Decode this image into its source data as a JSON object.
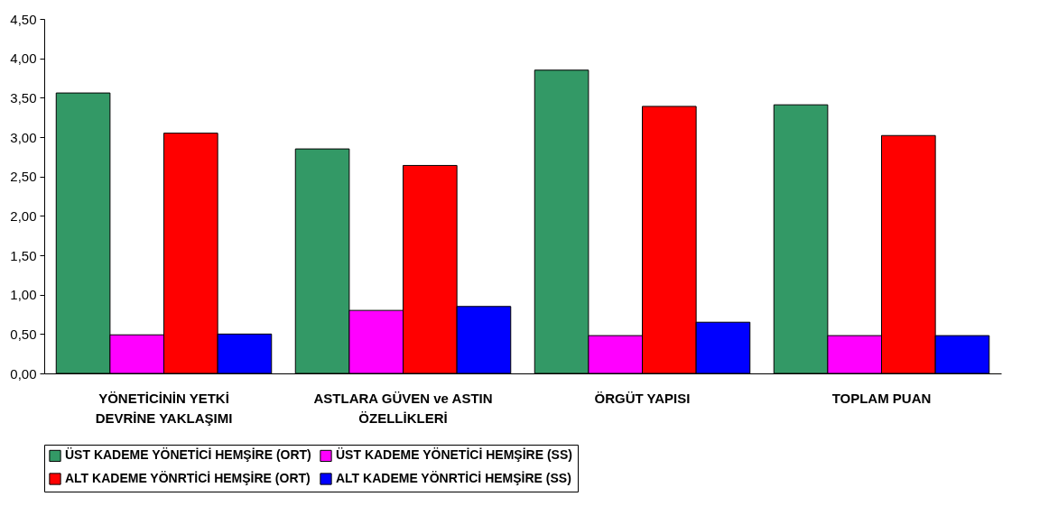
{
  "chart_data": {
    "type": "bar",
    "categories": [
      "YÖNETİCİNİN YETKİ DEVRİNE YAKLAŞIMI",
      "ASTLARA GÜVEN  ve ASTIN ÖZELLİKLERİ",
      "ÖRGÜT YAPISI",
      "TOPLAM PUAN"
    ],
    "series": [
      {
        "name": "ÜST KADEME YÖNETİCİ HEMŞİRE (ORT)",
        "color": "#339966",
        "values": [
          3.56,
          2.85,
          3.85,
          3.41
        ]
      },
      {
        "name": "ÜST KADEME YÖNETİCİ HEMŞİRE (SS)",
        "color": "#ff00ff",
        "values": [
          0.49,
          0.8,
          0.48,
          0.48
        ]
      },
      {
        "name": "ALT KADEME YÖNRTİCİ HEMŞİRE (ORT)",
        "color": "#ff0000",
        "values": [
          3.05,
          2.64,
          3.39,
          3.02
        ]
      },
      {
        "name": "ALT KADEME YÖNRTİCİ HEMŞİRE (SS)",
        "color": "#0000ff",
        "values": [
          0.5,
          0.85,
          0.65,
          0.48
        ]
      }
    ],
    "ylim": [
      0,
      4.5
    ],
    "yticks": [
      {
        "value": 0,
        "label": "0,00"
      },
      {
        "value": 0.5,
        "label": "0,50"
      },
      {
        "value": 1,
        "label": "1,00"
      },
      {
        "value": 1.5,
        "label": "1,50"
      },
      {
        "value": 2,
        "label": "2,00"
      },
      {
        "value": 2.5,
        "label": "2,50"
      },
      {
        "value": 3,
        "label": "3,00"
      },
      {
        "value": 3.5,
        "label": "3,50"
      },
      {
        "value": 4,
        "label": "4,00"
      },
      {
        "value": 4.5,
        "label": "4,50"
      }
    ],
    "grid": false,
    "legend": "bottom"
  }
}
